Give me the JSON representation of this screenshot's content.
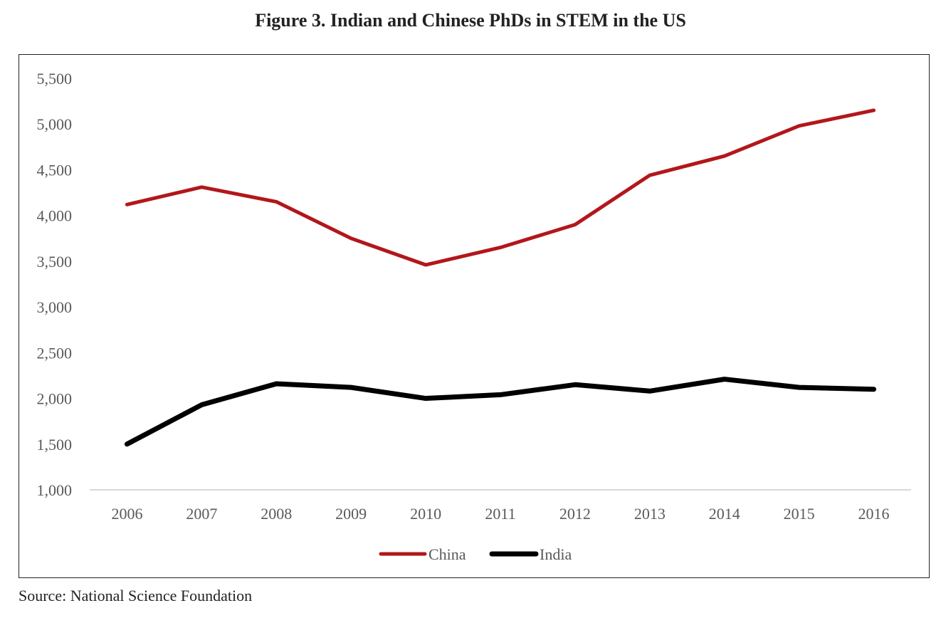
{
  "source": "Source: National Science Foundation",
  "chart_data": {
    "type": "line",
    "title": "Figure 3. Indian and Chinese PhDs in STEM in the US",
    "xlabel": "",
    "ylabel": "",
    "categories": [
      "2006",
      "2007",
      "2008",
      "2009",
      "2010",
      "2011",
      "2012",
      "2013",
      "2014",
      "2015",
      "2016"
    ],
    "yticks": [
      "1,000",
      "1,500",
      "2,000",
      "2,500",
      "3,000",
      "3,500",
      "4,000",
      "4,500",
      "5,000",
      "5,500"
    ],
    "ylim": [
      1000,
      5500
    ],
    "grid": false,
    "legend_position": "bottom",
    "series": [
      {
        "name": "China",
        "color": "#b2171b",
        "values": [
          4120,
          4310,
          4150,
          3750,
          3460,
          3650,
          3900,
          4440,
          4650,
          4980,
          5150
        ]
      },
      {
        "name": "India",
        "color": "#000000",
        "values": [
          1500,
          1930,
          2160,
          2120,
          2000,
          2040,
          2150,
          2080,
          2210,
          2120,
          2100
        ]
      }
    ]
  }
}
